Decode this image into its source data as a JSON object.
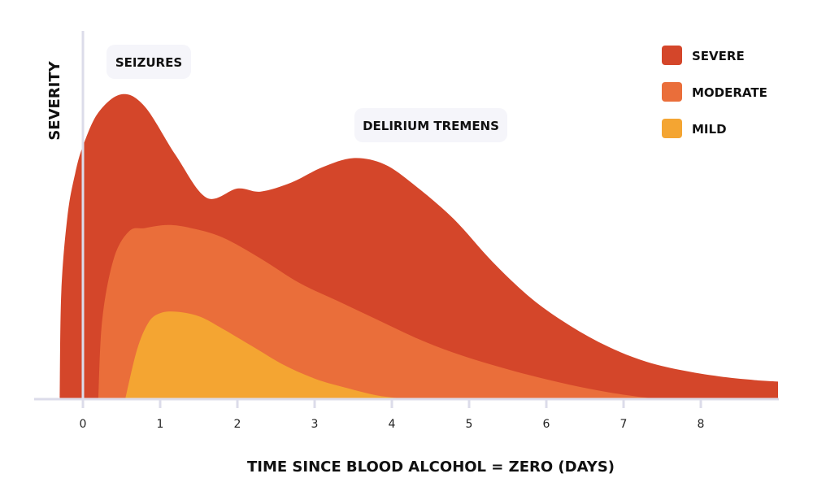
{
  "chart_data": {
    "type": "area",
    "title": "",
    "xlabel": "TIME SINCE BLOOD ALCOHOL = ZERO (DAYS)",
    "ylabel": "SEVERITY",
    "xlim": [
      -0.6,
      9.0
    ],
    "ylim": [
      0,
      10
    ],
    "xticks": [
      "0",
      "1",
      "2",
      "3",
      "4",
      "5",
      "6",
      "7",
      "8"
    ],
    "legend_position": "top-right",
    "annotations": [
      {
        "text": "SEIZURES",
        "x": 0.9,
        "y": 11.2
      },
      {
        "text": "DELIRIUM TREMENS",
        "x": 4.5,
        "y": 9.0
      }
    ],
    "series": [
      {
        "name": "SEVERE",
        "color": "#D4462A",
        "x": [
          -0.3,
          -0.28,
          -0.2,
          -0.1,
          0.0,
          0.2,
          0.5,
          0.8,
          1.2,
          1.6,
          2.0,
          2.3,
          2.7,
          3.1,
          3.5,
          3.9,
          4.3,
          4.8,
          5.3,
          5.8,
          6.3,
          6.8,
          7.3,
          7.8,
          8.3,
          8.7,
          9.0
        ],
        "y": [
          0,
          3.5,
          6.0,
          7.4,
          8.3,
          9.4,
          10.0,
          9.6,
          8.0,
          6.6,
          6.9,
          6.8,
          7.1,
          7.6,
          7.9,
          7.7,
          7.0,
          5.9,
          4.5,
          3.3,
          2.4,
          1.7,
          1.2,
          0.9,
          0.7,
          0.6,
          0.55
        ]
      },
      {
        "name": "MODERATE",
        "color": "#EA6E3A",
        "x": [
          0.2,
          0.25,
          0.4,
          0.6,
          0.8,
          1.1,
          1.4,
          1.8,
          2.3,
          2.8,
          3.3,
          3.8,
          4.3,
          4.8,
          5.3,
          5.8,
          6.3,
          6.8,
          7.3,
          7.5
        ],
        "y": [
          0,
          2.6,
          4.6,
          5.5,
          5.6,
          5.7,
          5.6,
          5.3,
          4.6,
          3.8,
          3.2,
          2.6,
          2.0,
          1.5,
          1.1,
          0.75,
          0.45,
          0.2,
          0.02,
          0
        ]
      },
      {
        "name": "MILD",
        "color": "#F4A532",
        "x": [
          0.55,
          0.7,
          0.85,
          1.0,
          1.2,
          1.5,
          1.8,
          2.2,
          2.6,
          3.0,
          3.4,
          3.8,
          4.1
        ],
        "y": [
          0,
          1.6,
          2.5,
          2.8,
          2.85,
          2.7,
          2.3,
          1.7,
          1.1,
          0.65,
          0.35,
          0.1,
          0
        ]
      }
    ]
  }
}
